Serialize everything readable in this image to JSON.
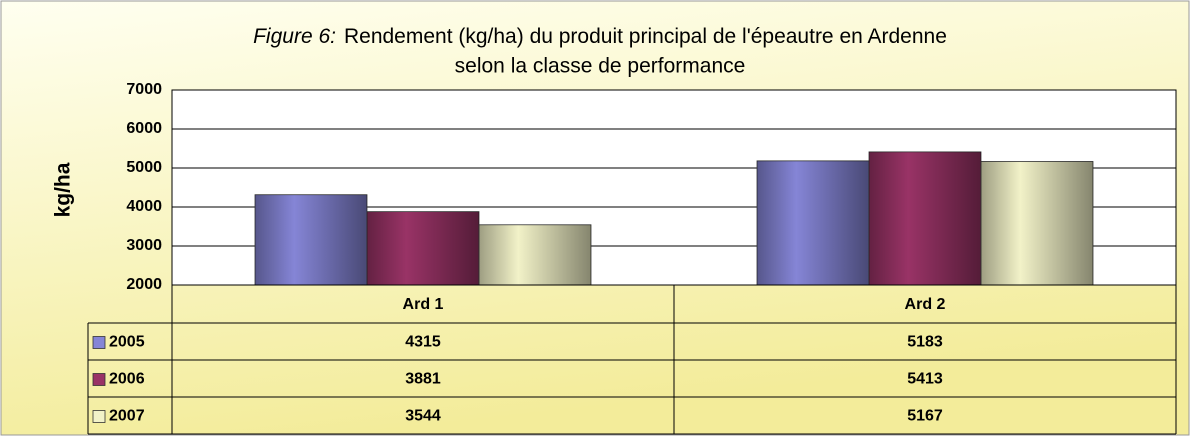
{
  "chart_data": {
    "type": "bar",
    "figure_label": "Figure 6:",
    "title_lines": [
      "Rendement (kg/ha) du produit principal de l'épeautre en Ardenne",
      "selon la classe de performance"
    ],
    "ylabel": "kg/ha",
    "categories": [
      "Ard 1",
      "Ard 2"
    ],
    "series": [
      {
        "name": "2005",
        "color": "#8585d6",
        "values": [
          4315,
          5183
        ]
      },
      {
        "name": "2006",
        "color": "#993366",
        "values": [
          3881,
          5413
        ]
      },
      {
        "name": "2007",
        "color": "#f2f2c8",
        "values": [
          3544,
          5167
        ]
      }
    ],
    "ylim": [
      2000,
      7000
    ],
    "yticks": [
      2000,
      3000,
      4000,
      5000,
      6000,
      7000
    ],
    "grid": true
  }
}
